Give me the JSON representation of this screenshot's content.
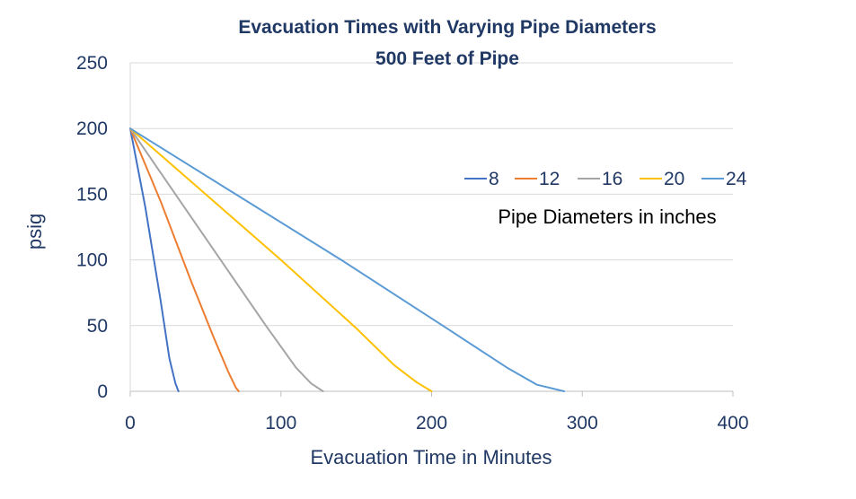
{
  "chart_data": {
    "type": "line",
    "title": "Evacuation Times with Varying Pipe Diameters",
    "subtitle": "500 Feet of Pipe",
    "xlabel": "Evacuation Time in Minutes",
    "ylabel": "psig",
    "xlim": [
      0,
      400
    ],
    "ylim": [
      0,
      250
    ],
    "x_ticks": [
      0,
      100,
      200,
      300,
      400
    ],
    "y_ticks": [
      0,
      50,
      100,
      150,
      200,
      250
    ],
    "grid": "horizontal",
    "legend_position": "upper-right",
    "annotation": "Pipe Diameters in inches",
    "series": [
      {
        "name": "8",
        "color": "#4472C4",
        "x": [
          0,
          10,
          20,
          26,
          30,
          32
        ],
        "y": [
          200,
          140,
          70,
          25,
          6,
          0
        ]
      },
      {
        "name": "12",
        "color": "#ED7D31",
        "x": [
          0,
          20,
          40,
          55,
          65,
          70,
          72
        ],
        "y": [
          200,
          145,
          85,
          42,
          15,
          3,
          0
        ]
      },
      {
        "name": "16",
        "color": "#A5A5A5",
        "x": [
          0,
          30,
          60,
          90,
          110,
          120,
          128
        ],
        "y": [
          200,
          150,
          100,
          50,
          18,
          6,
          0
        ]
      },
      {
        "name": "20",
        "color": "#FFC000",
        "x": [
          0,
          50,
          100,
          150,
          175,
          190,
          200
        ],
        "y": [
          200,
          150,
          100,
          48,
          20,
          7,
          0
        ]
      },
      {
        "name": "24",
        "color": "#5B9BD5",
        "x": [
          0,
          70,
          140,
          210,
          250,
          270,
          288
        ],
        "y": [
          200,
          150,
          100,
          48,
          18,
          5,
          0
        ]
      }
    ]
  }
}
